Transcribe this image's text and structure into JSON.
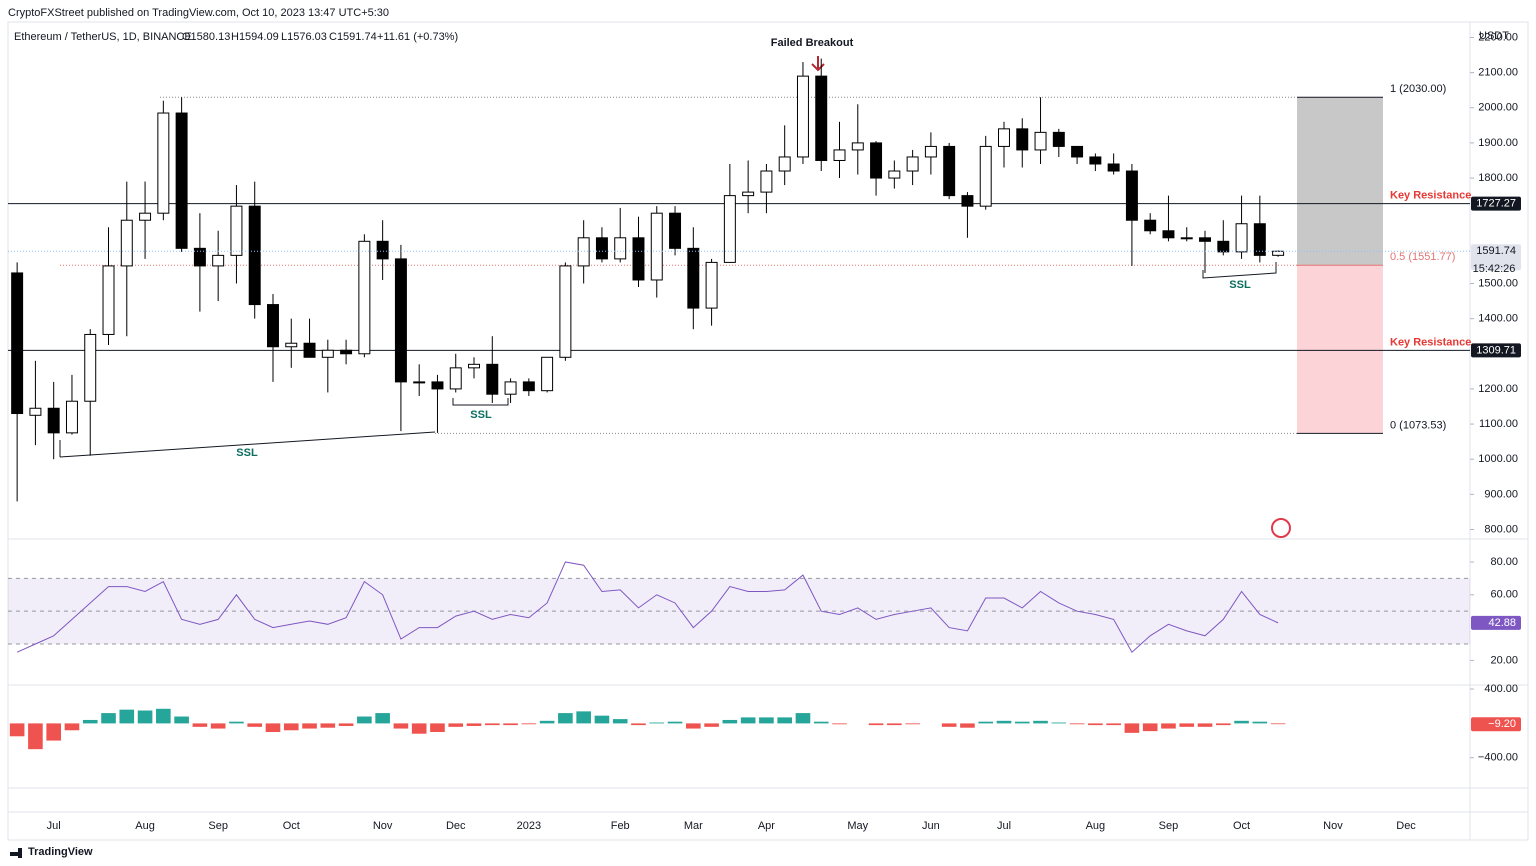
{
  "header": {
    "publisher": "CryptoFXStreet published on TradingView.com, Oct 10, 2023 13:47 UTC+5:30",
    "symbol": "Ethereum / TetherUS, 1D, BINANCE",
    "ohlc_labels": [
      "O1580.13",
      "H1594.09",
      "L1576.03",
      "C1591.74"
    ],
    "change": "+11.61 (+0.73%)",
    "currency": "USDT",
    "countdown": "15:42:26"
  },
  "footer": {
    "brand": "TradingView"
  },
  "chart_data": [
    {
      "type": "candlestick",
      "categories": [
        null,
        null,
        "Jul",
        null,
        null,
        null,
        null,
        "Aug",
        null,
        null,
        null,
        "Sep",
        null,
        null,
        null,
        "Oct",
        null,
        null,
        null,
        null,
        "Nov",
        null,
        null,
        null,
        "Dec",
        null,
        null,
        null,
        "2023",
        null,
        null,
        null,
        null,
        "Feb",
        null,
        null,
        null,
        "Mar",
        null,
        null,
        null,
        "Apr",
        null,
        null,
        null,
        null,
        "May",
        null,
        null,
        null,
        "Jun",
        null,
        null,
        null,
        "Jul",
        null,
        null,
        null,
        null,
        "Aug",
        null,
        null,
        null,
        "Sep",
        null,
        null,
        null,
        "Oct",
        null,
        null,
        null,
        null,
        "Nov",
        null,
        null,
        null,
        "Dec",
        null,
        null,
        null
      ],
      "open": [
        1530,
        1125,
        1145,
        1075,
        1165,
        1355,
        1550,
        1680,
        1700,
        1985,
        1600,
        1550,
        1580,
        1720,
        1440,
        1320,
        1330,
        1290,
        1310,
        1300,
        1620,
        1570,
        1220,
        1220,
        1200,
        1260,
        1270,
        1185,
        1220,
        1195,
        1290,
        1550,
        1630,
        1570,
        1630,
        1510,
        1700,
        1600,
        1430,
        1560,
        1750,
        1760,
        1820,
        1860,
        2090,
        1850,
        1880,
        1900,
        1800,
        1820,
        1860,
        1890,
        1750,
        1720,
        1890,
        1940,
        1880,
        1930,
        1890,
        1860,
        1840,
        1820,
        1680,
        1650,
        1630,
        1630,
        1620,
        1590,
        1670,
        1580.13,
        null,
        null,
        null,
        null,
        null,
        null,
        null,
        null,
        null,
        null
      ],
      "high": [
        1560,
        1280,
        1220,
        1240,
        1370,
        1660,
        1790,
        1790,
        2020,
        2030,
        1700,
        1650,
        1780,
        1790,
        1470,
        1400,
        1400,
        1340,
        1340,
        1640,
        1680,
        1610,
        1270,
        1240,
        1300,
        1290,
        1350,
        1230,
        1230,
        1290,
        1560,
        1680,
        1660,
        1715,
        1690,
        1720,
        1720,
        1660,
        1570,
        1840,
        1850,
        1840,
        1950,
        2130,
        2140,
        1960,
        2010,
        1905,
        1850,
        1880,
        1930,
        1900,
        1760,
        1920,
        1960,
        1970,
        2030,
        1940,
        1890,
        1870,
        1870,
        1840,
        1700,
        1750,
        1660,
        1650,
        1680,
        1750,
        1750,
        1594.09,
        null,
        null,
        null,
        null,
        null,
        null,
        null,
        null,
        null,
        null
      ],
      "low": [
        880,
        1040,
        1000,
        1070,
        1010,
        1325,
        1350,
        1570,
        1680,
        1590,
        1420,
        1450,
        1500,
        1400,
        1220,
        1260,
        1290,
        1190,
        1270,
        1290,
        1510,
        1080,
        1180,
        1075,
        1190,
        1230,
        1160,
        1160,
        1180,
        1190,
        1280,
        1500,
        1560,
        1560,
        1490,
        1460,
        1580,
        1370,
        1380,
        1560,
        1700,
        1700,
        1780,
        1840,
        1820,
        1800,
        1810,
        1750,
        1770,
        1780,
        1810,
        1740,
        1630,
        1710,
        1830,
        1830,
        1840,
        1860,
        1840,
        1820,
        1810,
        1550,
        1640,
        1620,
        1620,
        1530,
        1580,
        1570,
        1560,
        1576.03,
        null,
        null,
        null,
        null,
        null,
        null,
        null,
        null,
        null,
        null
      ],
      "close": [
        1130,
        1145,
        1075,
        1165,
        1355,
        1550,
        1680,
        1700,
        1985,
        1600,
        1550,
        1580,
        1720,
        1440,
        1320,
        1330,
        1290,
        1310,
        1300,
        1620,
        1570,
        1220,
        1220,
        1200,
        1260,
        1270,
        1185,
        1220,
        1195,
        1290,
        1550,
        1630,
        1570,
        1630,
        1510,
        1700,
        1600,
        1430,
        1560,
        1750,
        1760,
        1820,
        1860,
        2090,
        1850,
        1880,
        1900,
        1800,
        1820,
        1860,
        1890,
        1750,
        1720,
        1890,
        1940,
        1880,
        1930,
        1890,
        1860,
        1840,
        1820,
        1680,
        1650,
        1630,
        1630,
        1620,
        1590,
        1670,
        1580,
        1591.74,
        null,
        null,
        null,
        null,
        null,
        null,
        null,
        null,
        null,
        null
      ],
      "color_up": "#ffffff",
      "color_down": "#000000",
      "outline": "#000000",
      "ylim": [
        773,
        2244
      ],
      "yticks": [
        {
          "value": 800,
          "label": "800.00"
        },
        {
          "value": 900,
          "label": "900.00"
        },
        {
          "value": 1000,
          "label": "1000.00"
        },
        {
          "value": 1100,
          "label": "1100.00"
        },
        {
          "value": 1200,
          "label": "1200.00"
        },
        {
          "value": 1400,
          "label": "1400.00"
        },
        {
          "value": 1500,
          "label": "1500.00"
        },
        {
          "value": 1800,
          "label": "1800.00"
        },
        {
          "value": 1900,
          "label": "1900.00"
        },
        {
          "value": 2000,
          "label": "2000.00"
        },
        {
          "value": 2100,
          "label": "2100.00"
        },
        {
          "value": 2200,
          "label": "2200.00"
        }
      ],
      "grid": false,
      "levels": [
        {
          "value": 1727.27,
          "label": "Key Resistance"
        },
        {
          "value": 1309.71,
          "label": "Key Resistance"
        }
      ],
      "fib": {
        "levels": [
          2030,
          1551.77,
          1073.53
        ],
        "labels": [
          "1 (2030.00)",
          "0.5 (1551.77)",
          "0 (1073.53)"
        ],
        "colors": [
          "#c8c8c8",
          "#fcd4d8"
        ]
      },
      "annotations": {
        "breakout": "Failed Breakout",
        "ssl": [
          "SSL",
          "SSL",
          "SSL"
        ]
      }
    },
    {
      "type": "line",
      "name": "RSI",
      "color": "#7e57c2",
      "values": [
        25,
        30,
        35,
        45,
        55,
        65,
        65,
        62,
        68,
        45,
        42,
        45,
        60,
        45,
        40,
        42,
        44,
        42,
        46,
        68,
        60,
        33,
        40,
        40,
        47,
        50,
        45,
        48,
        46,
        55,
        80,
        78,
        62,
        63,
        52,
        60,
        55,
        40,
        50,
        65,
        62,
        62,
        63,
        72,
        50,
        48,
        52,
        45,
        48,
        50,
        52,
        40,
        38,
        58,
        58,
        52,
        62,
        55,
        50,
        48,
        45,
        25,
        35,
        42,
        38,
        35,
        45,
        62,
        48,
        42.88
      ],
      "ylim": [
        5,
        94
      ],
      "yticks": [
        {
          "value": 20,
          "label": "20.00"
        },
        {
          "value": 60,
          "label": "60.00"
        },
        {
          "value": 80,
          "label": "80.00"
        }
      ],
      "bands": [
        30,
        50,
        70
      ]
    },
    {
      "type": "bar",
      "name": "MACD",
      "color_up": "#26a69a",
      "color_down": "#ef5350",
      "values": [
        -150,
        -300,
        -200,
        -80,
        40,
        120,
        160,
        150,
        170,
        80,
        -40,
        -60,
        20,
        -40,
        -100,
        -80,
        -60,
        -50,
        -30,
        80,
        120,
        -60,
        -120,
        -100,
        -40,
        -30,
        -20,
        -20,
        -10,
        30,
        120,
        140,
        90,
        50,
        -20,
        10,
        20,
        -60,
        -40,
        40,
        70,
        70,
        70,
        120,
        20,
        -10,
        0,
        -20,
        -20,
        -10,
        0,
        -40,
        -50,
        20,
        30,
        20,
        30,
        10,
        -10,
        -20,
        -20,
        -110,
        -90,
        -60,
        -40,
        -40,
        -20,
        30,
        20,
        -9.2
      ],
      "last_value_label": "−9.20",
      "ylim": [
        -752,
        447
      ],
      "yticks": [
        {
          "value": 400,
          "label": "400.00"
        },
        {
          "value": -400,
          "label": "−400.00"
        }
      ]
    }
  ]
}
